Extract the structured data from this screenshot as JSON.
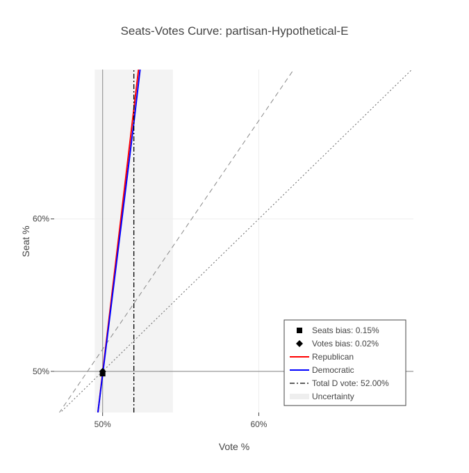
{
  "chart_data": {
    "type": "line",
    "title": "Seats-Votes Curve: partisan-Hypothetical-E",
    "xlabel": "Vote %",
    "ylabel": "Seat %",
    "xlim": [
      46.9,
      69.9
    ],
    "ylim": [
      47.3,
      69.8
    ],
    "x_ticks": [
      {
        "value": 50,
        "label": "50%"
      },
      {
        "value": 60,
        "label": "60%"
      }
    ],
    "y_ticks": [
      {
        "value": 50,
        "label": "50%"
      },
      {
        "value": 60,
        "label": "60%"
      }
    ],
    "grid": true,
    "legend_position": "bottom-right",
    "series": [
      {
        "name": "Republican",
        "color": "#ff0000",
        "style": "solid",
        "x": [
          49.7,
          52.3
        ],
        "y": [
          47.3,
          69.8
        ]
      },
      {
        "name": "Democratic",
        "color": "#0000ff",
        "style": "solid",
        "x": [
          49.7,
          52.0,
          52.4
        ],
        "y": [
          47.3,
          66.3,
          69.8
        ]
      },
      {
        "name": "Total D vote: 52.00%",
        "color": "#000000",
        "style": "dashdot",
        "x": [
          52.0,
          52.0
        ],
        "y": [
          47.3,
          69.8
        ]
      }
    ],
    "reference_lines": [
      {
        "kind": "diagonal",
        "style": "dotted",
        "color": "#666666",
        "x": [
          46.9,
          69.9
        ],
        "y": [
          46.9,
          69.9
        ]
      },
      {
        "kind": "steep",
        "style": "dashed",
        "color": "#888888",
        "x": [
          46.9,
          69.9
        ],
        "y": [
          46.8,
          81.3
        ]
      }
    ],
    "uncertainty_band": {
      "name": "Uncertainty",
      "x": [
        49.5,
        54.5
      ],
      "color": "#eeeeee"
    },
    "markers": [
      {
        "name": "Seats bias: 0.15%",
        "symbol": "square",
        "x": 50.0,
        "y": 49.85
      },
      {
        "name": "Votes bias: 0.02%",
        "symbol": "diamond",
        "x": 50.0,
        "y": 50.0
      }
    ],
    "legend": [
      {
        "label": "Seats bias: 0.15%",
        "symbol": "square",
        "color": "#000000"
      },
      {
        "label": "Votes bias: 0.02%",
        "symbol": "diamond",
        "color": "#000000"
      },
      {
        "label": "Republican",
        "symbol": "line",
        "color": "#ff0000"
      },
      {
        "label": "Democratic",
        "symbol": "line",
        "color": "#0000ff"
      },
      {
        "label": "Total D vote: 52.00%",
        "symbol": "dashdot",
        "color": "#000000"
      },
      {
        "label": "Uncertainty",
        "symbol": "band",
        "color": "#eeeeee"
      }
    ]
  }
}
